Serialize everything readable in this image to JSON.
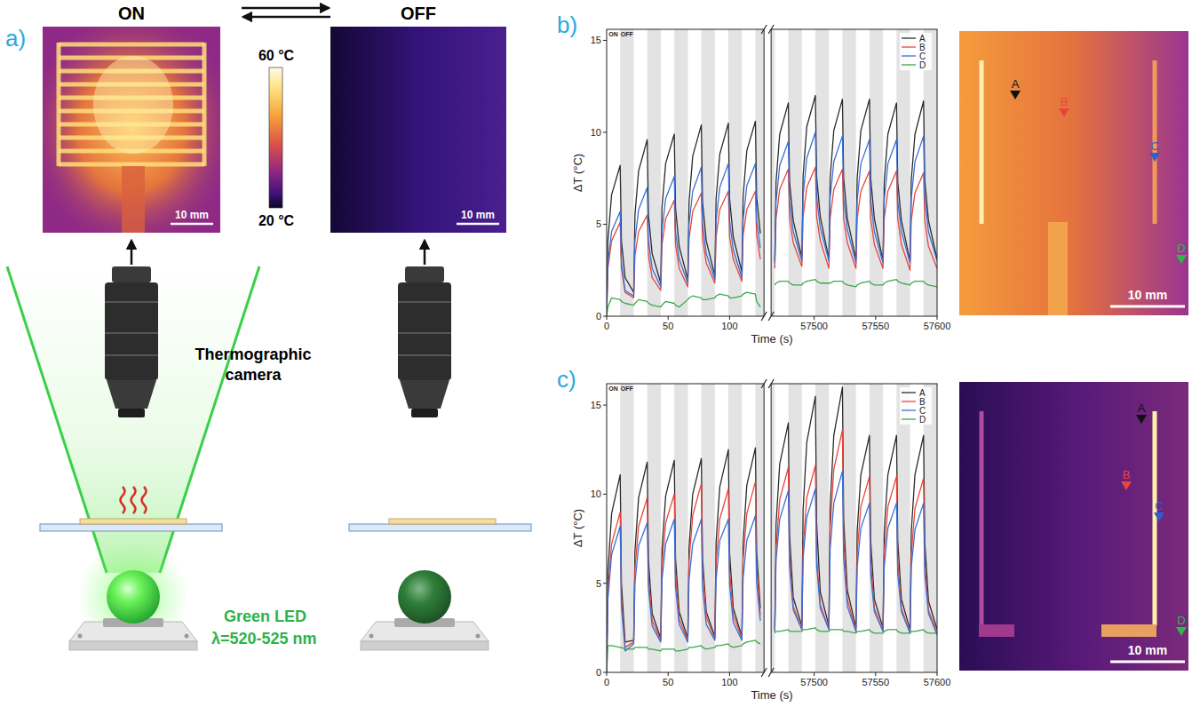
{
  "panel_a": {
    "letter": "a)",
    "on_label": "ON",
    "off_label": "OFF",
    "colorbar_max": "60 °C",
    "colorbar_min": "20 °C",
    "scale_bar_on": "10 mm",
    "scale_bar_off": "10 mm",
    "camera_label": "Thermographic camera",
    "led_label": "Green LED",
    "wavelength_label": "λ=520-525 nm"
  },
  "chart_data": [
    {
      "type": "line",
      "panel": "b)",
      "xlabel": "Time (s)",
      "ylabel": "ΔT (°C)",
      "on_label": "ON",
      "off_label": "OFF",
      "xlim": [
        [
          0,
          128
        ],
        [
          57465,
          57600
        ]
      ],
      "xticks": [
        [
          0,
          50,
          100
        ],
        [
          57500,
          57550,
          57600
        ]
      ],
      "ylim": [
        0,
        15.6
      ],
      "yticks": [
        0,
        5,
        10,
        15
      ],
      "grid": false,
      "legend": "upper right",
      "off_intervals": [
        [
          11,
          22
        ],
        [
          33,
          44
        ],
        [
          55,
          66
        ],
        [
          77,
          88
        ],
        [
          99,
          110
        ],
        [
          121,
          128
        ],
        [
          57465,
          57468
        ],
        [
          57479,
          57490
        ],
        [
          57501,
          57512
        ],
        [
          57523,
          57534
        ],
        [
          57545,
          57556
        ],
        [
          57567,
          57578
        ],
        [
          57589,
          57600
        ]
      ],
      "x": [
        0,
        1,
        4,
        11,
        12,
        15,
        22,
        23,
        26,
        33,
        34,
        37,
        44,
        45,
        48,
        55,
        56,
        59,
        66,
        67,
        70,
        77,
        78,
        81,
        88,
        89,
        92,
        99,
        100,
        103,
        110,
        111,
        114,
        121,
        122,
        125,
        57468,
        57469,
        57472,
        57479,
        57480,
        57483,
        57490,
        57491,
        57494,
        57501,
        57502,
        57505,
        57512,
        57513,
        57516,
        57523,
        57524,
        57527,
        57534,
        57535,
        57538,
        57545,
        57546,
        57549,
        57556,
        57557,
        57560,
        57567,
        57568,
        57571,
        57578,
        57579,
        57582,
        57589,
        57590,
        57593,
        57600
      ],
      "series": [
        {
          "name": "A",
          "color": "#2b2b2b",
          "values": [
            0,
            4.1,
            6.6,
            8.2,
            4.1,
            2.1,
            1.3,
            5.5,
            7.9,
            9.6,
            5.5,
            3.4,
            1.8,
            5.9,
            8.3,
            9.9,
            5.9,
            3.8,
            2.0,
            6.2,
            8.7,
            10.4,
            6.2,
            4.1,
            2.2,
            6.4,
            8.8,
            10.5,
            6.4,
            4.3,
            2.4,
            6.5,
            9.0,
            10.6,
            6.5,
            4.5,
            3.0,
            7.3,
            9.9,
            11.6,
            7.3,
            5.2,
            3.2,
            7.6,
            10.3,
            12.0,
            7.6,
            5.4,
            3.1,
            7.5,
            10.1,
            11.8,
            7.5,
            5.3,
            3.1,
            7.5,
            10.1,
            11.8,
            7.5,
            5.3,
            3.0,
            7.3,
            9.9,
            11.6,
            7.3,
            5.2,
            3.0,
            7.4,
            9.9,
            11.7,
            7.4,
            5.2,
            3.1
          ]
        },
        {
          "name": "B",
          "color": "#e8453c",
          "values": [
            0,
            2.6,
            4.1,
            5.1,
            2.6,
            1.3,
            1.0,
            3.3,
            4.6,
            5.5,
            3.3,
            2.1,
            1.4,
            3.9,
            5.3,
            6.3,
            3.9,
            2.6,
            1.6,
            4.2,
            5.7,
            6.7,
            4.2,
            2.9,
            1.8,
            4.3,
            5.8,
            6.8,
            4.3,
            3.1,
            1.9,
            4.4,
            5.8,
            6.8,
            4.4,
            3.1,
            2.6,
            5.3,
            6.9,
            8.0,
            5.3,
            4.0,
            2.7,
            5.4,
            7.0,
            8.1,
            5.4,
            4.1,
            2.6,
            5.3,
            6.9,
            8.0,
            5.3,
            4.0,
            2.6,
            5.3,
            6.8,
            7.9,
            5.3,
            3.9,
            2.6,
            5.3,
            6.8,
            7.9,
            5.3,
            3.9,
            2.5,
            5.2,
            6.7,
            7.8,
            5.2,
            3.8,
            2.6
          ]
        },
        {
          "name": "C",
          "color": "#3b6fd6",
          "values": [
            0,
            2.9,
            4.6,
            5.7,
            2.9,
            1.4,
            1.1,
            4.1,
            5.8,
            7.0,
            4.1,
            2.6,
            1.6,
            4.6,
            6.4,
            7.6,
            4.6,
            3.1,
            1.8,
            5.0,
            6.8,
            8.1,
            5.0,
            3.4,
            2.0,
            5.2,
            7.0,
            8.3,
            5.2,
            3.6,
            2.1,
            5.2,
            7.1,
            8.3,
            5.2,
            3.7,
            2.9,
            6.2,
            8.2,
            9.5,
            6.2,
            4.6,
            3.0,
            6.5,
            8.6,
            10.0,
            6.5,
            4.8,
            3.0,
            6.4,
            8.4,
            9.8,
            6.4,
            4.7,
            2.9,
            6.3,
            8.3,
            9.6,
            6.3,
            4.6,
            2.9,
            6.3,
            8.3,
            9.6,
            6.3,
            4.6,
            2.9,
            6.4,
            8.4,
            9.8,
            6.4,
            4.6,
            3.0
          ]
        },
        {
          "name": "D",
          "color": "#3aa84a",
          "values": [
            0,
            0.5,
            1.0,
            0.9,
            0.8,
            0.7,
            0.6,
            0.7,
            0.9,
            0.8,
            0.7,
            0.6,
            0.5,
            0.6,
            0.8,
            0.7,
            0.6,
            0.5,
            0.9,
            1.0,
            1.1,
            1.0,
            0.9,
            0.9,
            1.0,
            1.1,
            1.2,
            1.1,
            1.0,
            1.0,
            1.1,
            1.2,
            1.3,
            1.2,
            0.8,
            0.5,
            1.7,
            1.8,
            1.9,
            1.9,
            1.8,
            1.7,
            1.7,
            1.8,
            1.9,
            2.0,
            1.9,
            1.8,
            1.8,
            1.8,
            1.9,
            1.9,
            1.8,
            1.7,
            1.6,
            1.7,
            1.8,
            1.9,
            1.8,
            1.7,
            1.7,
            1.8,
            1.9,
            2.0,
            1.9,
            1.8,
            1.7,
            1.8,
            1.9,
            1.9,
            1.8,
            1.7,
            1.6
          ]
        }
      ]
    },
    {
      "type": "line",
      "panel": "c)",
      "xlabel": "Time (s)",
      "ylabel": "ΔT (°C)",
      "on_label": "ON",
      "off_label": "OFF",
      "xlim": [
        [
          0,
          128
        ],
        [
          57465,
          57600
        ]
      ],
      "xticks": [
        [
          0,
          50,
          100
        ],
        [
          57500,
          57550,
          57600
        ]
      ],
      "ylim": [
        0,
        16.2
      ],
      "yticks": [
        0,
        5,
        10,
        15
      ],
      "grid": false,
      "legend": "upper right",
      "off_intervals": [
        [
          11,
          22
        ],
        [
          33,
          44
        ],
        [
          55,
          66
        ],
        [
          77,
          88
        ],
        [
          99,
          110
        ],
        [
          121,
          128
        ],
        [
          57465,
          57468
        ],
        [
          57479,
          57490
        ],
        [
          57501,
          57512
        ],
        [
          57523,
          57534
        ],
        [
          57545,
          57556
        ],
        [
          57567,
          57578
        ],
        [
          57589,
          57600
        ]
      ],
      "x": [
        0,
        1,
        4,
        11,
        12,
        15,
        22,
        23,
        26,
        33,
        34,
        37,
        44,
        45,
        48,
        55,
        56,
        59,
        66,
        67,
        70,
        77,
        78,
        81,
        88,
        89,
        92,
        99,
        100,
        103,
        110,
        111,
        114,
        121,
        122,
        125,
        57468,
        57469,
        57472,
        57479,
        57480,
        57483,
        57490,
        57491,
        57494,
        57501,
        57502,
        57505,
        57512,
        57513,
        57516,
        57523,
        57524,
        57527,
        57534,
        57535,
        57538,
        57545,
        57546,
        57549,
        57556,
        57557,
        57560,
        57567,
        57568,
        57571,
        57578,
        57579,
        57582,
        57589,
        57590,
        57593,
        57600
      ],
      "series": [
        {
          "name": "A",
          "color": "#2b2b2b",
          "values": [
            0,
            5.6,
            8.9,
            11.1,
            5.0,
            1.7,
            1.8,
            6.8,
            9.8,
            11.8,
            6.3,
            3.3,
            1.9,
            6.9,
            9.9,
            11.9,
            6.4,
            3.4,
            1.9,
            7.0,
            10.0,
            12.0,
            6.4,
            3.4,
            2.0,
            7.3,
            10.4,
            12.5,
            6.7,
            3.6,
            2.0,
            7.3,
            10.5,
            12.6,
            6.8,
            3.6,
            2.5,
            8.3,
            11.7,
            14.0,
            7.7,
            4.2,
            2.6,
            9.1,
            12.9,
            15.5,
            8.4,
            4.5,
            2.6,
            9.3,
            13.3,
            16.0,
            8.6,
            4.6,
            2.5,
            7.9,
            11.1,
            13.3,
            7.4,
            4.1,
            2.5,
            7.9,
            11.1,
            13.3,
            7.4,
            4.1,
            2.4,
            7.9,
            11.1,
            13.3,
            7.3,
            4.0,
            2.4
          ]
        },
        {
          "name": "B",
          "color": "#e8453c",
          "values": [
            0,
            4.5,
            7.2,
            9.0,
            4.1,
            1.4,
            1.7,
            5.8,
            8.2,
            9.8,
            5.3,
            2.9,
            1.8,
            5.9,
            8.4,
            10.0,
            5.5,
            3.0,
            1.8,
            6.2,
            8.8,
            10.6,
            5.8,
            3.1,
            1.9,
            6.1,
            8.6,
            10.3,
            5.7,
            3.2,
            1.9,
            6.3,
            8.9,
            10.7,
            5.9,
            3.2,
            2.3,
            6.9,
            9.7,
            11.5,
            6.4,
            3.7,
            2.4,
            7.0,
            9.8,
            11.6,
            6.5,
            3.8,
            2.4,
            8.0,
            11.4,
            13.6,
            7.4,
            4.1,
            2.3,
            6.7,
            9.3,
            11.0,
            6.2,
            3.6,
            2.3,
            6.7,
            9.3,
            11.0,
            6.2,
            3.6,
            2.2,
            6.6,
            9.2,
            10.9,
            6.1,
            3.5,
            2.2
          ]
        },
        {
          "name": "C",
          "color": "#3b6fd6",
          "values": [
            0,
            4.1,
            6.6,
            8.2,
            3.7,
            1.2,
            1.6,
            5.0,
            7.1,
            8.4,
            4.7,
            2.6,
            1.7,
            5.2,
            7.2,
            8.6,
            4.8,
            2.7,
            1.7,
            5.2,
            7.2,
            8.6,
            4.8,
            2.7,
            1.8,
            5.2,
            7.4,
            8.6,
            4.9,
            2.8,
            1.8,
            5.3,
            7.4,
            8.8,
            5.0,
            2.9,
            2.3,
            6.3,
            8.6,
            10.2,
            5.9,
            3.5,
            2.4,
            6.4,
            8.7,
            10.3,
            6.0,
            3.6,
            2.4,
            6.9,
            9.5,
            11.3,
            6.4,
            3.7,
            2.3,
            5.9,
            8.1,
            9.5,
            5.5,
            3.4,
            2.3,
            5.9,
            8.1,
            9.5,
            5.5,
            3.4,
            2.2,
            5.9,
            8.0,
            9.5,
            5.5,
            3.3,
            2.1
          ]
        },
        {
          "name": "D",
          "color": "#3aa84a",
          "values": [
            0,
            1.5,
            1.5,
            1.4,
            1.4,
            1.3,
            1.3,
            1.4,
            1.4,
            1.4,
            1.3,
            1.3,
            1.2,
            1.3,
            1.3,
            1.3,
            1.2,
            1.2,
            1.3,
            1.4,
            1.4,
            1.5,
            1.4,
            1.3,
            1.4,
            1.5,
            1.5,
            1.6,
            1.5,
            1.4,
            1.5,
            1.6,
            1.7,
            1.8,
            1.7,
            1.6,
            2.2,
            2.3,
            2.3,
            2.4,
            2.3,
            2.3,
            2.3,
            2.4,
            2.4,
            2.5,
            2.4,
            2.3,
            2.3,
            2.4,
            2.4,
            2.4,
            2.3,
            2.3,
            2.2,
            2.3,
            2.3,
            2.4,
            2.3,
            2.2,
            2.2,
            2.3,
            2.4,
            2.4,
            2.3,
            2.2,
            2.2,
            2.3,
            2.3,
            2.4,
            2.3,
            2.2,
            2.2
          ]
        }
      ]
    }
  ],
  "thermal_images": [
    {
      "scale_bar": "10 mm",
      "markers": [
        "A",
        "B",
        "C",
        "D"
      ]
    },
    {
      "scale_bar": "10 mm",
      "markers": [
        "A",
        "B",
        "C",
        "D"
      ]
    }
  ]
}
